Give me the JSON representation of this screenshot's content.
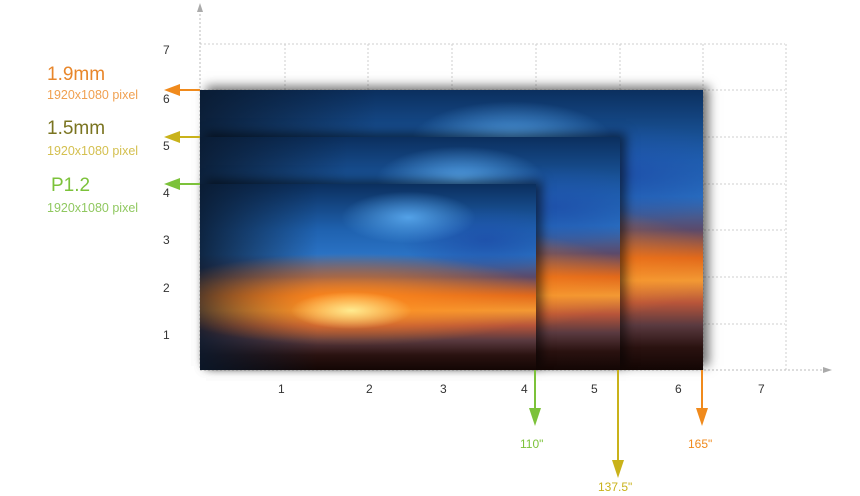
{
  "colors": {
    "p19": "#f08a1c",
    "p15": "#c9b21a",
    "p15_title": "#7a7420",
    "p12": "#7cc23a",
    "grid": "#cfcfcf",
    "axis": "#aaaaaa"
  },
  "axes": {
    "x_ticks": [
      "1",
      "2",
      "3",
      "4",
      "5",
      "6",
      "7"
    ],
    "y_ticks": [
      "1",
      "2",
      "3",
      "4",
      "5",
      "6",
      "7"
    ]
  },
  "screens": [
    {
      "pitch": "1.9mm",
      "resolution": "1920x1080 pixel",
      "diagonal": "165\""
    },
    {
      "pitch": "1.5mm",
      "resolution": "1920x1080 pixel",
      "diagonal": "137.5\""
    },
    {
      "pitch": "P1.2",
      "resolution": "1920x1080 pixel",
      "diagonal": "110\""
    }
  ]
}
